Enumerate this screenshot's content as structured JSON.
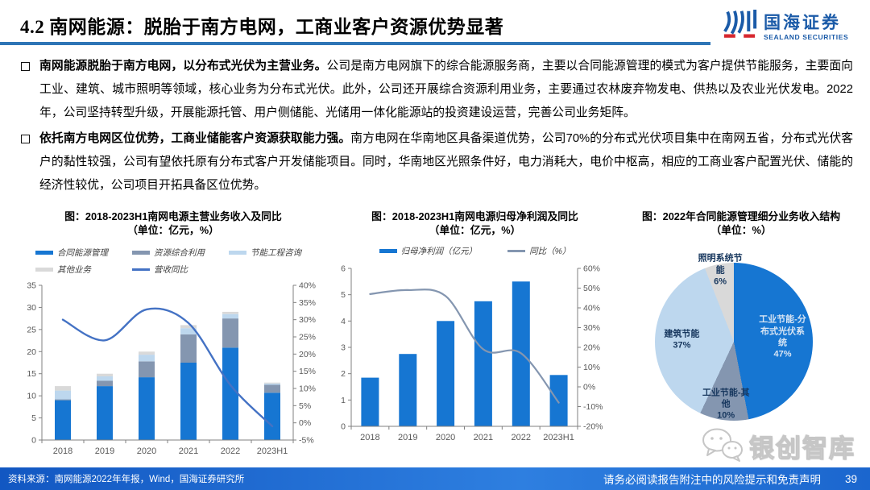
{
  "header": {
    "title_num": "4.2",
    "title_text": "南网能源：脱胎于南方电网，工商业客户资源优势显著",
    "logo_cn": "国海证券",
    "logo_en": "SEALAND SECURITIES"
  },
  "bullets": [
    {
      "lead": "南网能源脱胎于南方电网，以分布式光伏为主营业务。",
      "body": "公司是南方电网旗下的综合能源服务商，主要以合同能源管理的模式为客户提供节能服务，主要面向工业、建筑、城市照明等领域，核心业务为分布式光伏。此外，公司还开展综合资源利用业务，主要通过农林废弃物发电、供热以及农业光伏发电。2022年，公司坚持转型升级，开展能源托管、用户侧储能、光储用一体化能源站的投资建设运营，完善公司业务矩阵。"
    },
    {
      "lead": "依托南方电网区位优势，工商业储能客户资源获取能力强。",
      "body": "南方电网在华南地区具备渠道优势，公司70%的分布式光伏项目集中在南网五省，分布式光伏客户的黏性较强，公司有望依托原有分布式客户开发储能项目。同时，华南地区光照条件好，电力消耗大，电价中枢高，相应的工商业客户配置光伏、储能的经济性较优，公司项目开拓具备区位优势。"
    }
  ],
  "chart_data": [
    {
      "type": "bar",
      "subtype": "stacked-bar-with-line",
      "title": "图：2018-2023H1南网电源主营业务收入及同比",
      "subtitle": "（单位：亿元，%）",
      "categories": [
        "2018",
        "2019",
        "2020",
        "2021",
        "2022",
        "2023H1"
      ],
      "series": [
        {
          "name": "合同能源管理",
          "type": "bar",
          "color": "#1676D2",
          "values": [
            9.0,
            12.2,
            14.2,
            17.5,
            20.9,
            10.7
          ]
        },
        {
          "name": "资源综合利用",
          "type": "bar",
          "color": "#8496B0",
          "values": [
            0.2,
            1.2,
            3.6,
            6.4,
            6.6,
            1.8
          ]
        },
        {
          "name": "节能工程咨询",
          "type": "bar",
          "color": "#BDD7EE",
          "values": [
            2.0,
            1.0,
            1.5,
            1.4,
            1.0,
            0.3
          ]
        },
        {
          "name": "其他业务",
          "type": "bar",
          "color": "#D9D9D9",
          "values": [
            1.0,
            0.6,
            0.7,
            0.7,
            0.5,
            0.2
          ]
        },
        {
          "name": "营收同比",
          "type": "line",
          "color": "#4472C4",
          "values": [
            30,
            24,
            33,
            29,
            11,
            -1
          ]
        }
      ],
      "left_axis": {
        "min": 0,
        "max": 35,
        "step": 5
      },
      "right_axis": {
        "min": -5,
        "max": 40,
        "step": 5,
        "suffix": "%"
      },
      "grid": false,
      "legend_position": "top"
    },
    {
      "type": "bar",
      "subtype": "bar-with-line",
      "title": "图：2018-2023H1南网电源归母净利润及同比",
      "subtitle": "（单位：亿元，%）",
      "categories": [
        "2018",
        "2019",
        "2020",
        "2021",
        "2022",
        "2023H1"
      ],
      "series": [
        {
          "name": "归母净利润（亿元）",
          "type": "bar",
          "color": "#1676D2",
          "values": [
            1.85,
            2.75,
            4.0,
            4.75,
            5.5,
            1.95
          ]
        },
        {
          "name": "同比（%）",
          "type": "line",
          "color": "#8496B0",
          "values": [
            47,
            49,
            46,
            19,
            17,
            -8
          ]
        }
      ],
      "left_axis": {
        "min": 0,
        "max": 6,
        "step": 1
      },
      "right_axis": {
        "min": -20,
        "max": 60,
        "step": 10,
        "suffix": "%"
      },
      "grid": false,
      "legend_position": "top"
    },
    {
      "type": "pie",
      "title": "图：2022年合同能源管理细分业务收入结构",
      "subtitle": "（单位：%）",
      "start_angle_deg": 0,
      "slices": [
        {
          "label": "工业节能-分布式光伏系统",
          "value": 47,
          "color": "#1676D2",
          "label_color": "#D6E4F4"
        },
        {
          "label": "工业节能-其他",
          "value": 10,
          "color": "#8496B0",
          "label_color": "#17375E"
        },
        {
          "label": "建筑节能",
          "value": 37,
          "color": "#BDD7EE",
          "label_color": "#17375E"
        },
        {
          "label": "照明系统节能",
          "value": 6,
          "color": "#D9D9D9",
          "label_color": "#17375E"
        }
      ]
    }
  ],
  "watermark": {
    "text": "银创智库",
    "icon": "wechat-icon"
  },
  "footer": {
    "source": "资料来源：南网能源2022年年报，Wind，国海证券研究所",
    "disclaimer": "请务必阅读报告附注中的风险提示和免责声明",
    "page": "39"
  },
  "colors": {
    "brand_blue": "#2E75B6",
    "logo_blue": "#1B5BA8",
    "logo_red": "#D7282F",
    "footer_blue": "#1E6FD6",
    "axis_text": "#595959"
  }
}
